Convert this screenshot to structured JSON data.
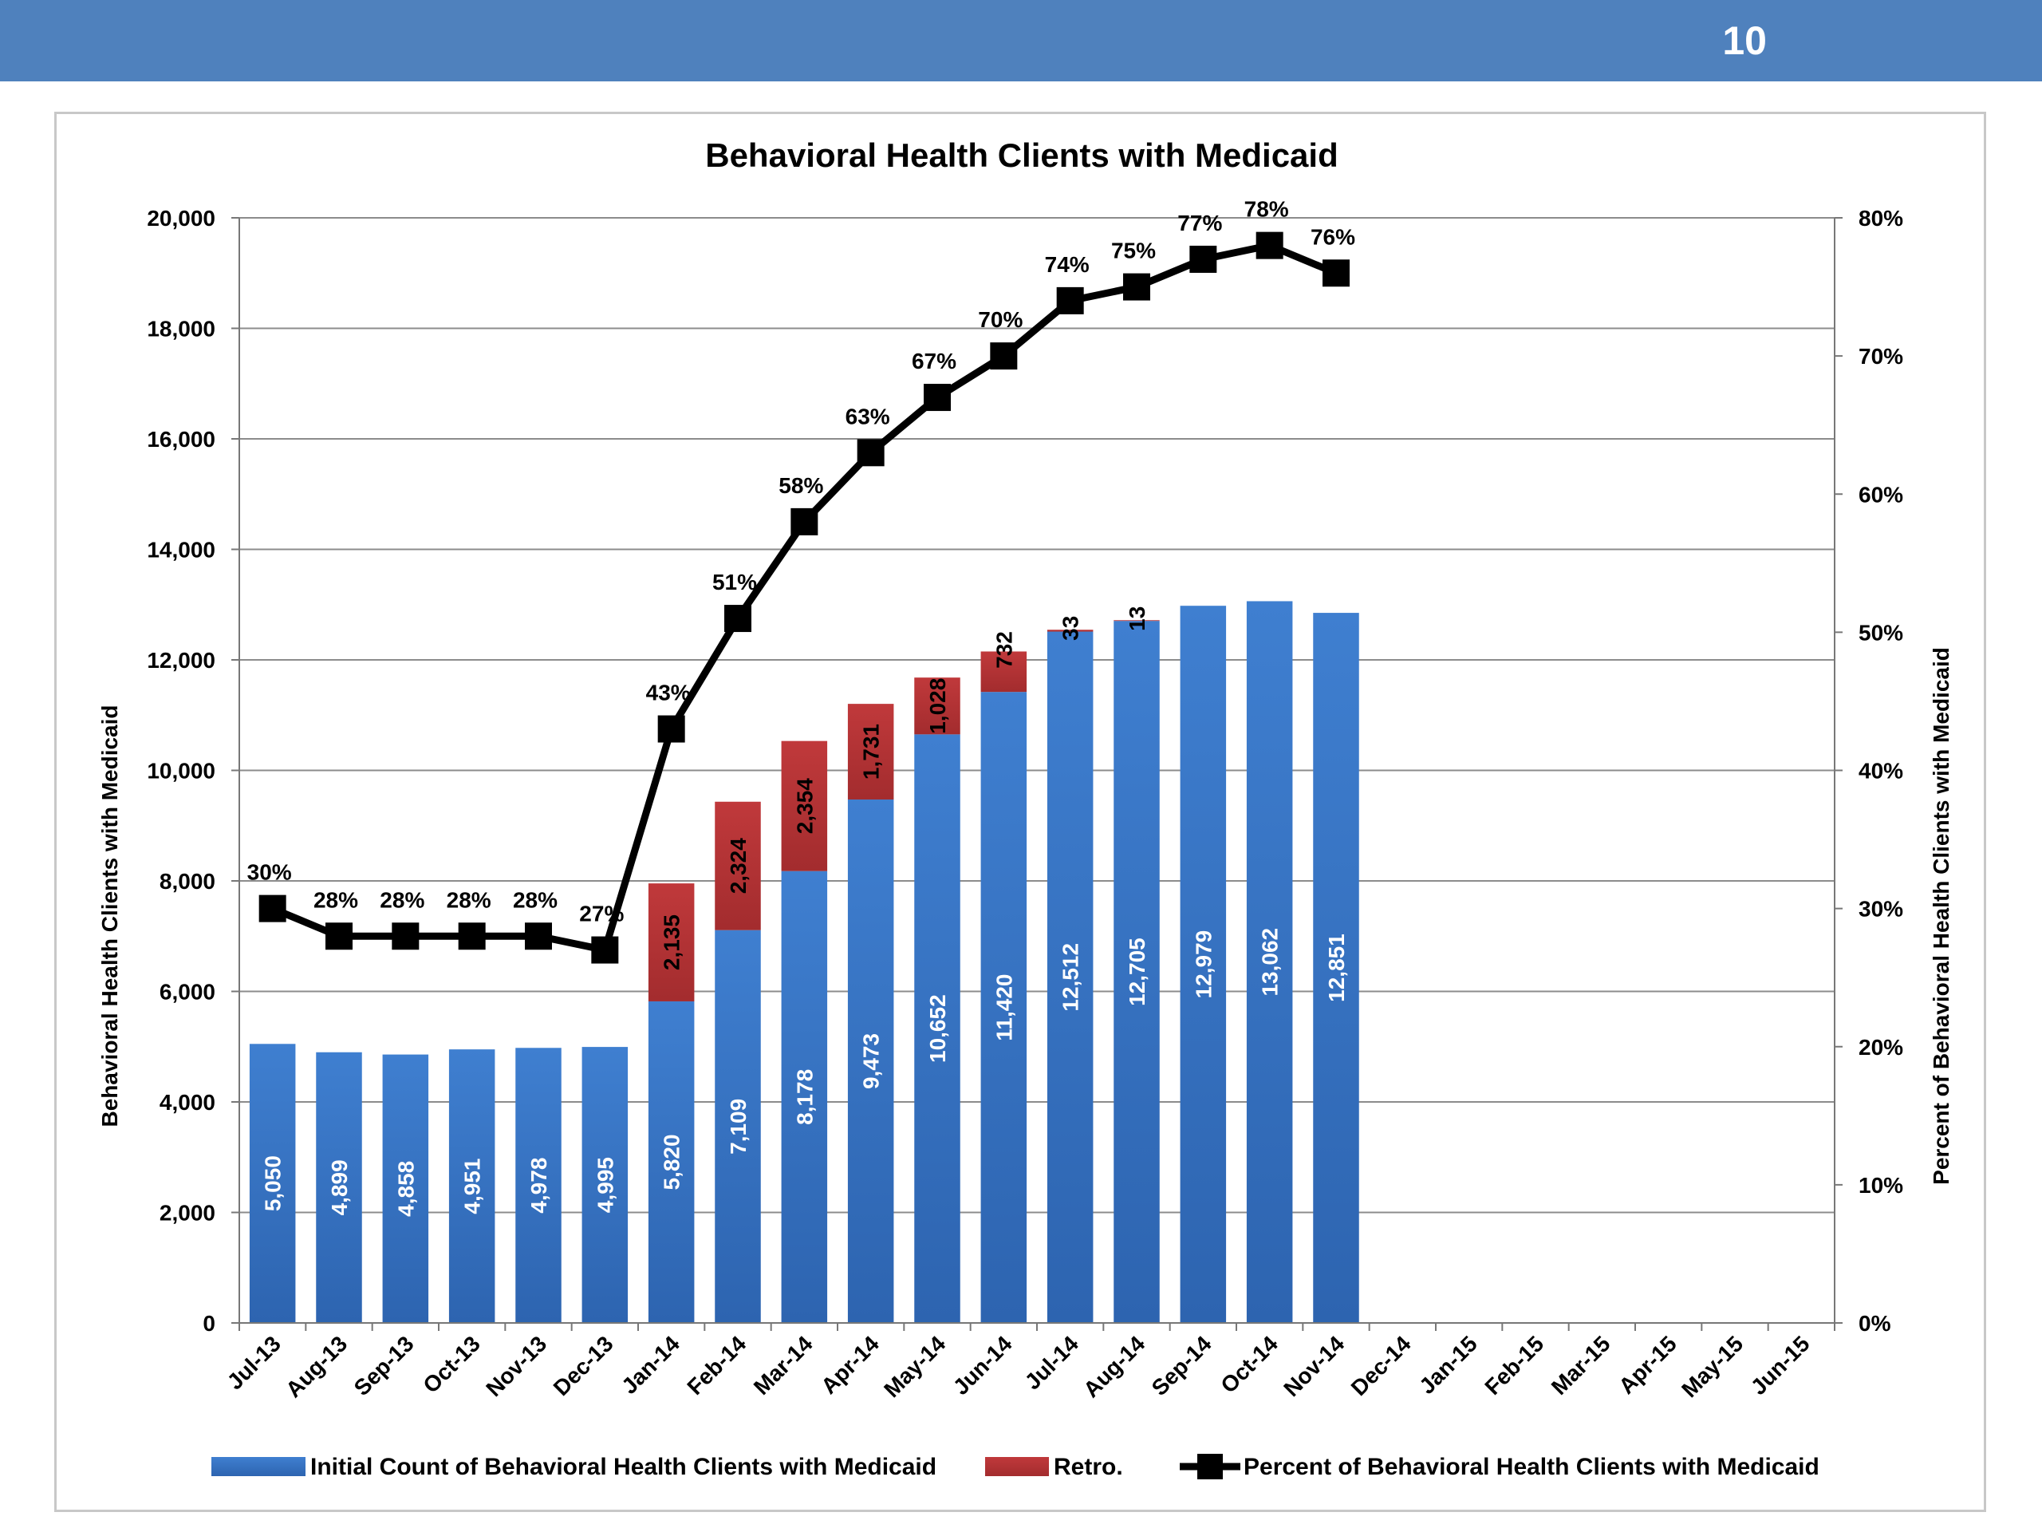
{
  "page": {
    "number": "10"
  },
  "chart_data": {
    "type": "bar",
    "title": "Behavioral Health Clients with Medicaid",
    "ylabel": "Behavioral Health Clients with Medicaid",
    "y2label": "Percent of Behavioral Health Clients with Medicaid",
    "ylim": [
      0,
      20000
    ],
    "y2lim": [
      0,
      0.8
    ],
    "yticks": [
      "0",
      "2,000",
      "4,000",
      "6,000",
      "8,000",
      "10,000",
      "12,000",
      "14,000",
      "16,000",
      "18,000",
      "20,000"
    ],
    "y2ticks": [
      "0%",
      "10%",
      "20%",
      "30%",
      "40%",
      "50%",
      "60%",
      "70%",
      "80%"
    ],
    "grid": true,
    "legend_position": "bottom",
    "categories": [
      "Jul-13",
      "Aug-13",
      "Sep-13",
      "Oct-13",
      "Nov-13",
      "Dec-13",
      "Jan-14",
      "Feb-14",
      "Mar-14",
      "Apr-14",
      "May-14",
      "Jun-14",
      "Jul-14",
      "Aug-14",
      "Sep-14",
      "Oct-14",
      "Nov-14",
      "Dec-14",
      "Jan-15",
      "Feb-15",
      "Mar-15",
      "Apr-15",
      "May-15",
      "Jun-15"
    ],
    "series": [
      {
        "name": "Initial Count of Behavioral Health Clients with Medicaid",
        "kind": "stacked-bar",
        "axis": "left",
        "color": "#3a75c4",
        "values": [
          5050,
          4899,
          4858,
          4951,
          4978,
          4995,
          5820,
          7109,
          8178,
          9473,
          10652,
          11420,
          12512,
          12705,
          12979,
          13062,
          12851,
          null,
          null,
          null,
          null,
          null,
          null,
          null
        ],
        "labels": [
          "5,050",
          "4,899",
          "4,858",
          "4,951",
          "4,978",
          "4,995",
          "5,820",
          "7,109",
          "8,178",
          "9,473",
          "10,652",
          "11,420",
          "12,512",
          "12,705",
          "12,979",
          "13,062",
          "12,851",
          null,
          null,
          null,
          null,
          null,
          null,
          null
        ]
      },
      {
        "name": "Retro.",
        "kind": "stacked-bar",
        "axis": "left",
        "color": "#c0393b",
        "values": [
          null,
          null,
          null,
          null,
          null,
          null,
          2135,
          2324,
          2354,
          1731,
          1028,
          732,
          33,
          13,
          null,
          null,
          null,
          null,
          null,
          null,
          null,
          null,
          null,
          null
        ],
        "labels": [
          null,
          null,
          null,
          null,
          null,
          null,
          "2,135",
          "2,324",
          "2,354",
          "1,731",
          "1,028",
          "732",
          "33",
          "13",
          null,
          null,
          null,
          null,
          null,
          null,
          null,
          null,
          null,
          null
        ]
      },
      {
        "name": "Percent of Behavioral Health Clients with Medicaid",
        "kind": "line",
        "axis": "right",
        "color": "#000000",
        "values": [
          0.3,
          0.28,
          0.28,
          0.28,
          0.28,
          0.27,
          0.43,
          0.51,
          0.58,
          0.63,
          0.67,
          0.7,
          0.74,
          0.75,
          0.77,
          0.78,
          0.76,
          null,
          null,
          null,
          null,
          null,
          null,
          null
        ],
        "labels": [
          "30%",
          "28%",
          "28%",
          "28%",
          "28%",
          "27%",
          "43%",
          "51%",
          "58%",
          "63%",
          "67%",
          "70%",
          "74%",
          "75%",
          "77%",
          "78%",
          "76%",
          null,
          null,
          null,
          null,
          null,
          null,
          null
        ]
      }
    ]
  }
}
